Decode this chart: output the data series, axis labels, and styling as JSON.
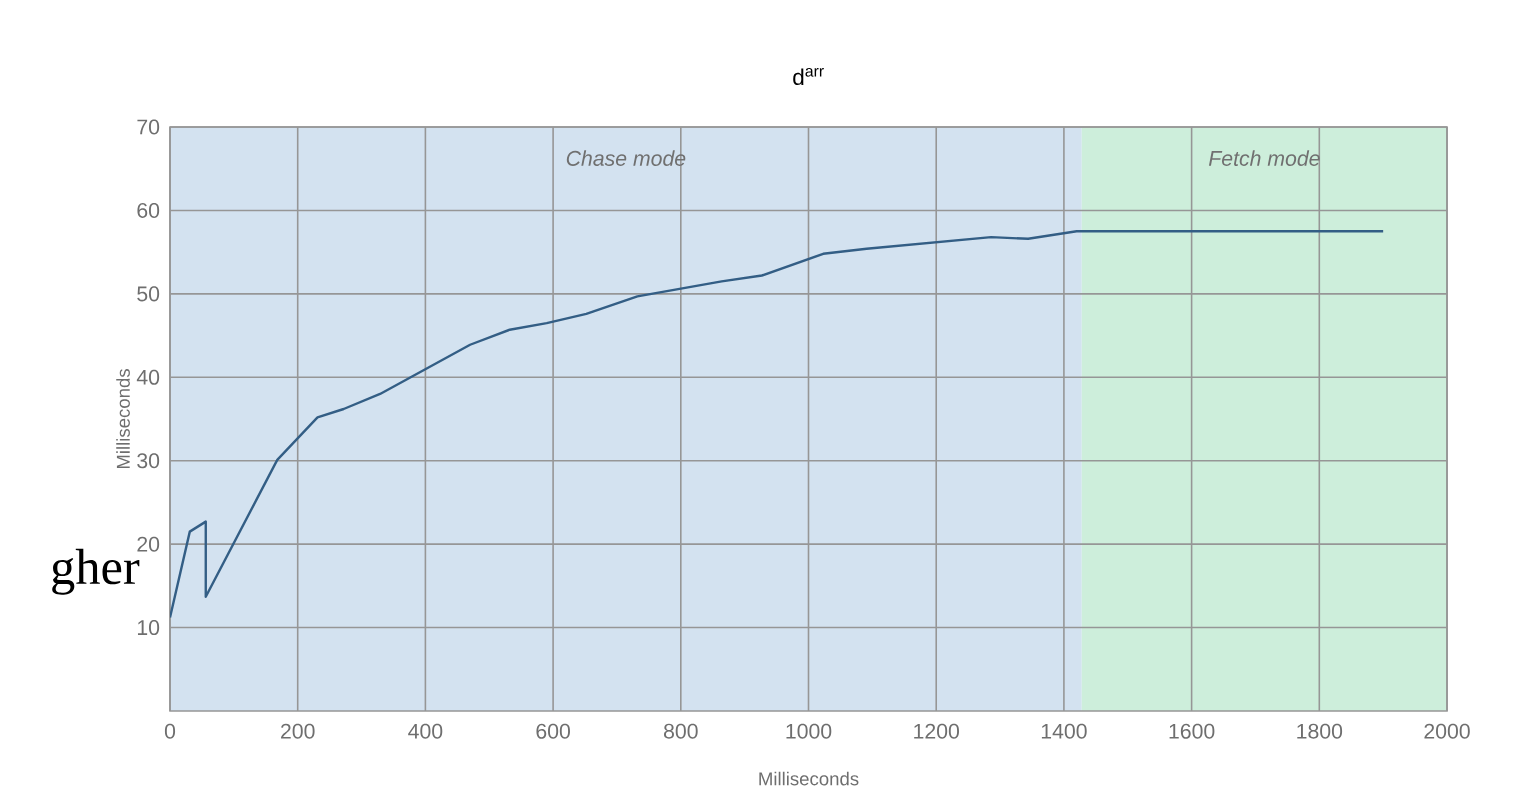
{
  "chart_data": {
    "type": "line",
    "title": "d$^{arr}$",
    "xlabel": "Milliseconds",
    "ylabel": "Milliseconds",
    "x": [
      0,
      31,
      56,
      56,
      168,
      231,
      272,
      329,
      470,
      532,
      590,
      652,
      732,
      864,
      927,
      1023,
      1091,
      1286,
      1344,
      1420,
      1500,
      1600,
      1700,
      1800,
      1900
    ],
    "series": [
      {
        "color": "#335e85",
        "values": [
          11.2,
          21.5,
          22.7,
          13.7,
          30.1,
          35.2,
          36.2,
          38.0,
          43.9,
          45.7,
          46.5,
          47.6,
          49.7,
          51.5,
          52.2,
          54.8,
          55.4,
          56.8,
          56.6,
          57.5,
          57.5,
          57.5,
          57.5,
          57.5,
          57.5
        ]
      }
    ],
    "xlim": [
      0,
      2000
    ],
    "ylim": [
      0,
      70
    ],
    "xticks": [
      0,
      200,
      400,
      600,
      800,
      1000,
      1200,
      1400,
      1600,
      1800,
      2000
    ],
    "yticks": [
      10,
      20,
      30,
      40,
      50,
      60,
      70
    ],
    "bands": [
      {
        "axis": "x",
        "from": 0,
        "to": 1428,
        "label": "Chase mode",
        "color": "#d3e2f0"
      },
      {
        "axis": "x",
        "from": 1428,
        "to": 2000,
        "label": "Fetch mode",
        "color": "#cdeedb"
      }
    ],
    "annotations": [
      "gher"
    ],
    "grid": true,
    "legend": false,
    "marker": "none",
    "line_style": "solid"
  }
}
